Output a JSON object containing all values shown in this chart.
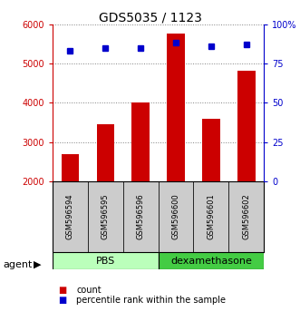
{
  "title": "GDS5035 / 1123",
  "samples": [
    "GSM596594",
    "GSM596595",
    "GSM596596",
    "GSM596600",
    "GSM596601",
    "GSM596602"
  ],
  "counts": [
    2700,
    3450,
    4000,
    5750,
    3580,
    4820
  ],
  "percentiles": [
    83,
    85,
    85,
    88,
    86,
    87
  ],
  "ylim_left": [
    2000,
    6000
  ],
  "ylim_right": [
    0,
    100
  ],
  "yticks_left": [
    2000,
    3000,
    4000,
    5000,
    6000
  ],
  "yticks_right": [
    0,
    25,
    50,
    75,
    100
  ],
  "yticklabels_right": [
    "0",
    "25",
    "50",
    "75",
    "100%"
  ],
  "bar_color": "#cc0000",
  "dot_color": "#0000cc",
  "group1_label": "PBS",
  "group2_label": "dexamethasone",
  "group1_color": "#bbffbb",
  "group2_color": "#44cc44",
  "agent_label": "agent",
  "legend_count": "count",
  "legend_percentile": "percentile rank within the sample",
  "background_color": "#ffffff",
  "label_area_bg": "#cccccc",
  "left_axis_color": "#cc0000",
  "right_axis_color": "#0000cc"
}
